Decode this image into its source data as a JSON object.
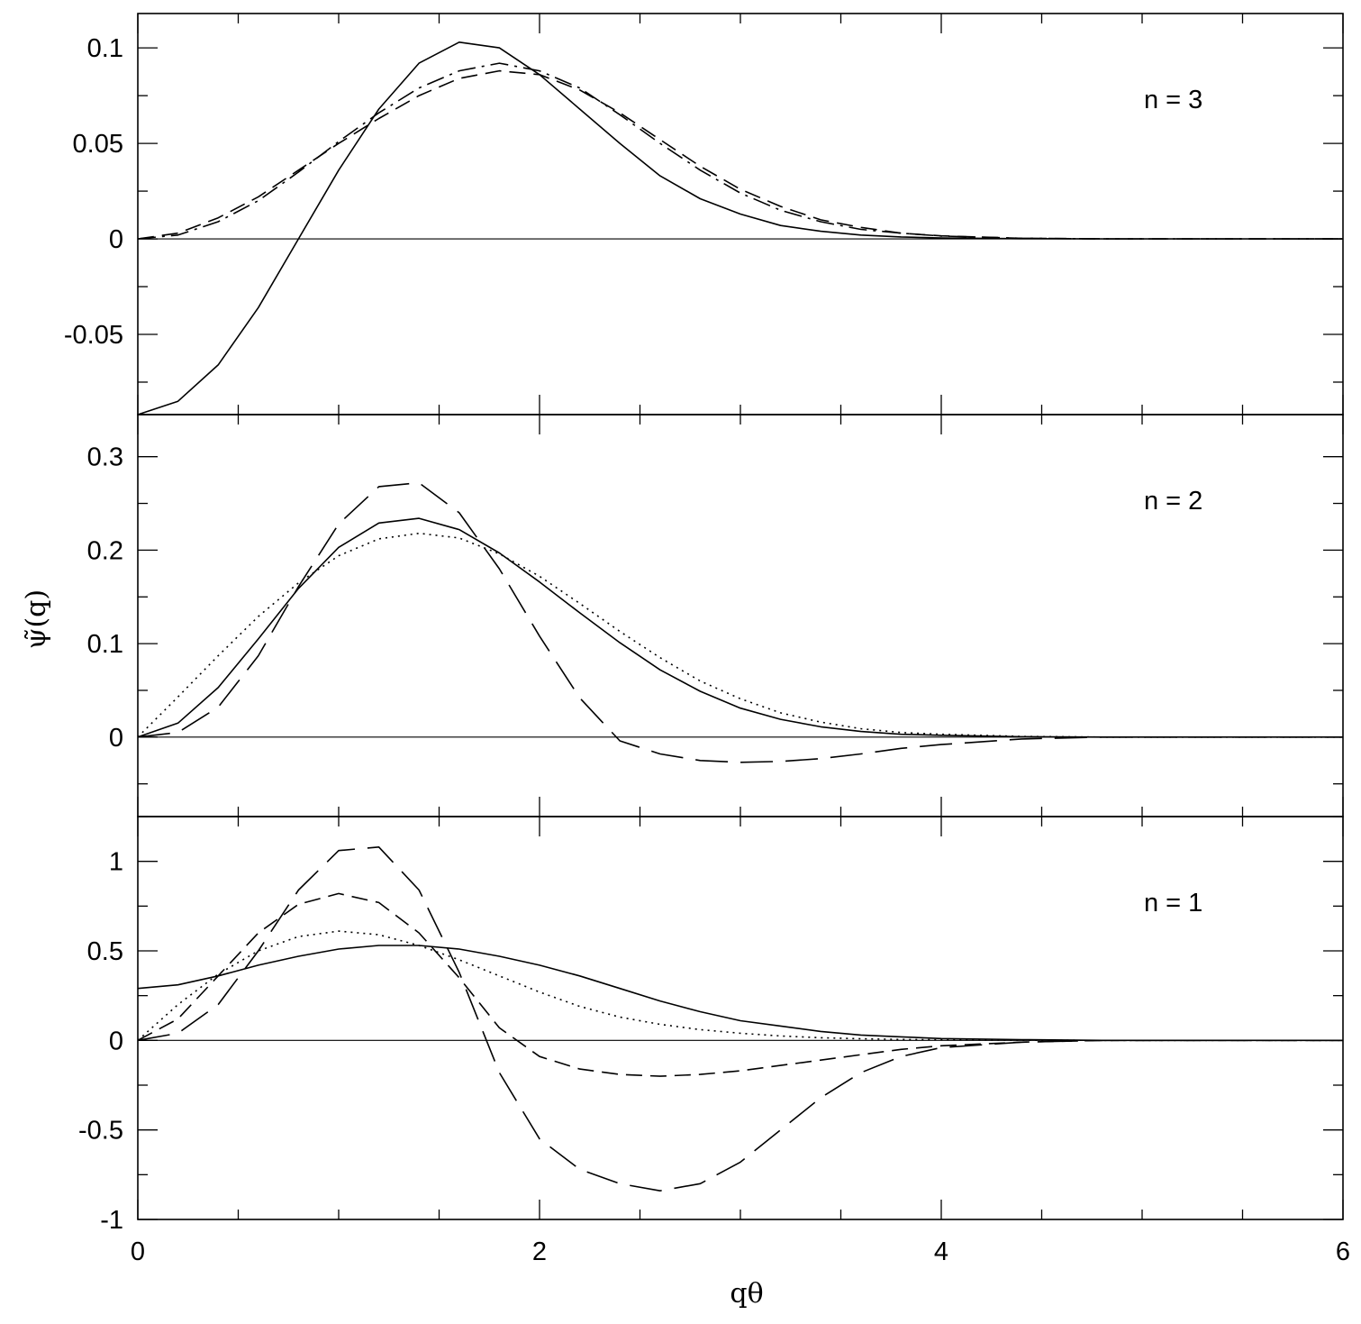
{
  "chart_data": {
    "type": "line",
    "xlabel": "qθ",
    "ylabel": "ψ̃(q)",
    "xlim": [
      0,
      6
    ],
    "x_ticks": [
      "0",
      "2",
      "4",
      "6"
    ],
    "x_minor_step": 0.5,
    "grid": false,
    "panels": [
      {
        "label": "n = 3",
        "ylim": [
          -0.092,
          0.118
        ],
        "y_ticks": [
          "-0.05",
          "0",
          "0.05",
          "0.1"
        ],
        "y_minor_step": 0.025,
        "series": [
          {
            "style": "solid",
            "x": [
              0,
              0.2,
              0.4,
              0.6,
              0.8,
              1.0,
              1.2,
              1.4,
              1.6,
              1.8,
              2.0,
              2.2,
              2.4,
              2.6,
              2.8,
              3.0,
              3.2,
              3.4,
              3.6,
              3.8,
              4.0,
              4.4,
              4.8,
              5.2,
              6.0
            ],
            "y": [
              -0.092,
              -0.085,
              -0.066,
              -0.036,
              0.0,
              0.036,
              0.068,
              0.092,
              0.103,
              0.1,
              0.086,
              0.068,
              0.05,
              0.033,
              0.021,
              0.013,
              0.007,
              0.004,
              0.002,
              0.001,
              0.0005,
              0.0001,
              0,
              0,
              0
            ]
          },
          {
            "style": "dashdot",
            "x": [
              0,
              0.2,
              0.4,
              0.6,
              0.8,
              1.0,
              1.2,
              1.4,
              1.6,
              1.8,
              2.0,
              2.2,
              2.4,
              2.6,
              2.8,
              3.0,
              3.2,
              3.4,
              3.6,
              3.8,
              4.0,
              4.4,
              4.8,
              5.2,
              6.0
            ],
            "y": [
              0,
              0.002,
              0.009,
              0.02,
              0.035,
              0.051,
              0.066,
              0.079,
              0.088,
              0.092,
              0.088,
              0.079,
              0.065,
              0.05,
              0.036,
              0.024,
              0.015,
              0.009,
              0.005,
              0.003,
              0.0015,
              0.0003,
              0,
              0,
              0
            ]
          },
          {
            "style": "dashed",
            "x": [
              0,
              0.2,
              0.4,
              0.6,
              0.8,
              1.0,
              1.2,
              1.4,
              1.6,
              1.8,
              2.0,
              2.2,
              2.4,
              2.6,
              2.8,
              3.0,
              3.2,
              3.4,
              3.6,
              3.8,
              4.0,
              4.4,
              4.8,
              5.2,
              6.0
            ],
            "y": [
              0,
              0.003,
              0.011,
              0.022,
              0.036,
              0.05,
              0.063,
              0.075,
              0.084,
              0.088,
              0.086,
              0.078,
              0.066,
              0.052,
              0.038,
              0.026,
              0.017,
              0.01,
              0.006,
              0.003,
              0.0016,
              0.0003,
              0,
              0,
              0
            ]
          }
        ]
      },
      {
        "label": "n = 2",
        "ylim": [
          -0.085,
          0.345
        ],
        "y_ticks": [
          "0",
          "0.1",
          "0.2",
          "0.3"
        ],
        "y_minor_step": 0.05,
        "series": [
          {
            "style": "solid",
            "x": [
              0,
              0.2,
              0.4,
              0.6,
              0.8,
              1.0,
              1.2,
              1.4,
              1.6,
              1.8,
              2.0,
              2.2,
              2.4,
              2.6,
              2.8,
              3.0,
              3.2,
              3.4,
              3.6,
              3.8,
              4.0,
              4.4,
              4.8,
              5.2,
              6.0
            ],
            "y": [
              0,
              0.015,
              0.053,
              0.105,
              0.159,
              0.203,
              0.229,
              0.234,
              0.222,
              0.197,
              0.166,
              0.133,
              0.101,
              0.072,
              0.049,
              0.031,
              0.019,
              0.011,
              0.006,
              0.003,
              0.002,
              0.0004,
              0,
              0,
              0
            ]
          },
          {
            "style": "dotted",
            "x": [
              0,
              0.2,
              0.4,
              0.6,
              0.8,
              1.0,
              1.2,
              1.4,
              1.6,
              1.8,
              2.0,
              2.2,
              2.4,
              2.6,
              2.8,
              3.0,
              3.2,
              3.4,
              3.6,
              3.8,
              4.0,
              4.4,
              4.8,
              5.2,
              6.0
            ],
            "y": [
              0,
              0.043,
              0.087,
              0.129,
              0.165,
              0.194,
              0.212,
              0.218,
              0.213,
              0.196,
              0.172,
              0.143,
              0.113,
              0.085,
              0.06,
              0.041,
              0.026,
              0.016,
              0.009,
              0.005,
              0.003,
              0.0007,
              0,
              0,
              0
            ]
          },
          {
            "style": "longdash",
            "x": [
              0,
              0.2,
              0.4,
              0.6,
              0.8,
              1.0,
              1.2,
              1.4,
              1.6,
              1.8,
              2.0,
              2.2,
              2.4,
              2.6,
              2.8,
              3.0,
              3.2,
              3.4,
              3.6,
              3.8,
              4.0,
              4.4,
              4.8,
              5.2,
              6.0
            ],
            "y": [
              0,
              0.005,
              0.032,
              0.087,
              0.161,
              0.228,
              0.268,
              0.272,
              0.24,
              0.18,
              0.108,
              0.042,
              -0.004,
              -0.018,
              -0.025,
              -0.027,
              -0.026,
              -0.023,
              -0.018,
              -0.012,
              -0.008,
              -0.002,
              0,
              0,
              0
            ]
          }
        ]
      },
      {
        "label": "n = 1",
        "ylim": [
          -1.0,
          1.25
        ],
        "y_ticks": [
          "-1",
          "-0.5",
          "0",
          "0.5",
          "1"
        ],
        "y_minor_step": 0.25,
        "series": [
          {
            "style": "solid",
            "x": [
              0,
              0.2,
              0.4,
              0.6,
              0.8,
              1.0,
              1.2,
              1.4,
              1.6,
              1.8,
              2.0,
              2.2,
              2.4,
              2.6,
              2.8,
              3.0,
              3.2,
              3.4,
              3.6,
              3.8,
              4.0,
              4.4,
              4.8,
              5.2,
              6.0
            ],
            "y": [
              0.29,
              0.31,
              0.36,
              0.42,
              0.47,
              0.51,
              0.53,
              0.53,
              0.51,
              0.47,
              0.42,
              0.36,
              0.29,
              0.22,
              0.16,
              0.11,
              0.08,
              0.05,
              0.03,
              0.02,
              0.01,
              0.004,
              0,
              0,
              0
            ]
          },
          {
            "style": "dotted",
            "x": [
              0,
              0.2,
              0.4,
              0.6,
              0.8,
              1.0,
              1.2,
              1.4,
              1.6,
              1.8,
              2.0,
              2.2,
              2.4,
              2.6,
              2.8,
              3.0,
              3.2,
              3.4,
              3.6,
              3.8,
              4.0,
              4.4,
              4.8,
              5.2,
              6.0
            ],
            "y": [
              0,
              0.2,
              0.37,
              0.5,
              0.58,
              0.61,
              0.59,
              0.53,
              0.45,
              0.36,
              0.27,
              0.19,
              0.13,
              0.09,
              0.06,
              0.04,
              0.025,
              0.015,
              0.009,
              0.005,
              0.003,
              0.001,
              0,
              0,
              0
            ]
          },
          {
            "style": "dashed",
            "x": [
              0,
              0.2,
              0.4,
              0.6,
              0.8,
              1.0,
              1.2,
              1.4,
              1.6,
              1.8,
              2.0,
              2.2,
              2.4,
              2.6,
              2.8,
              3.0,
              3.2,
              3.4,
              3.6,
              3.8,
              4.0,
              4.4,
              4.8,
              5.2,
              6.0
            ],
            "y": [
              0,
              0.12,
              0.36,
              0.6,
              0.76,
              0.82,
              0.77,
              0.6,
              0.35,
              0.07,
              -0.09,
              -0.16,
              -0.19,
              -0.2,
              -0.19,
              -0.17,
              -0.14,
              -0.11,
              -0.08,
              -0.05,
              -0.03,
              -0.01,
              0,
              0,
              0
            ]
          },
          {
            "style": "longdash",
            "x": [
              0,
              0.2,
              0.4,
              0.6,
              0.8,
              1.0,
              1.2,
              1.4,
              1.6,
              1.8,
              2.0,
              2.2,
              2.4,
              2.6,
              2.8,
              3.0,
              3.2,
              3.4,
              3.6,
              3.8,
              4.0,
              4.4,
              4.8,
              5.2,
              6.0
            ],
            "y": [
              0,
              0.04,
              0.2,
              0.5,
              0.84,
              1.06,
              1.08,
              0.84,
              0.38,
              -0.18,
              -0.55,
              -0.72,
              -0.8,
              -0.84,
              -0.8,
              -0.68,
              -0.5,
              -0.32,
              -0.18,
              -0.09,
              -0.04,
              -0.01,
              0,
              0,
              0
            ]
          }
        ]
      }
    ]
  }
}
